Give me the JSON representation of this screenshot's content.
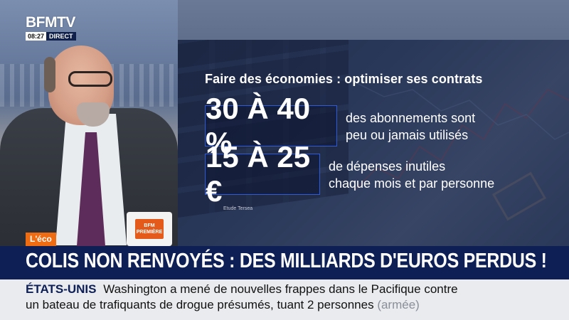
{
  "channel": {
    "logo": "BFMTV",
    "time": "08:27",
    "live_label": "DIRECT"
  },
  "graphic": {
    "title": "Faire des économies : optimiser ses contrats",
    "stats": [
      {
        "value": "30 À 40 %",
        "line1": "des abonnements sont",
        "line2": "peu ou jamais utilisés"
      },
      {
        "value": "15 À 25 €",
        "line1": "de dépenses inutiles",
        "line2": "chaque mois et par personne"
      }
    ],
    "source": "Etude Tersea"
  },
  "mug_label": "BFM PREMIÈRE",
  "rubric_tag": "L'éco",
  "headline": "COLIS NON RENVOYÉS : DES MILLIARDS D'EUROS PERDUS !",
  "ticker": {
    "country": "ÉTATS-UNIS",
    "line1": "Washington a mené de nouvelles frappes dans le Pacifique contre",
    "line2": "un bateau de trafiquants de drogue présumés, tuant 2 personnes",
    "meta": "(armée)"
  },
  "colors": {
    "brand_navy": "#0e1f56",
    "tag_orange": "#f06c12",
    "stat_border_blue": "#2f5bd8",
    "ticker_bg": "#e9ebee"
  }
}
